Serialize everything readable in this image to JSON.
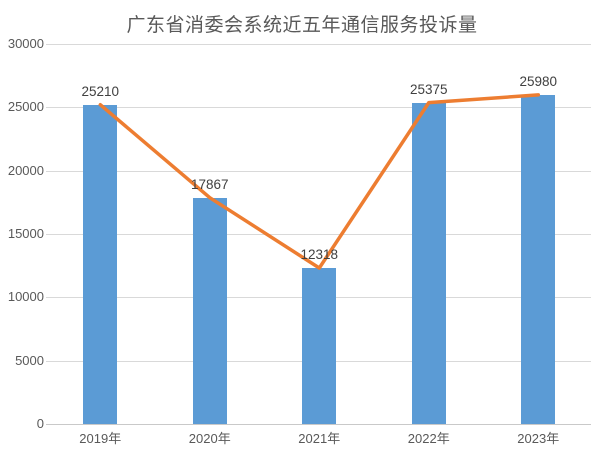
{
  "chart_data": {
    "type": "bar",
    "line_overlay": true,
    "title": "广东省消委会系统近五年通信服务投诉量",
    "categories": [
      "2019年",
      "2020年",
      "2021年",
      "2022年",
      "2023年"
    ],
    "values": [
      25210,
      17867,
      12318,
      25375,
      25980
    ],
    "data_labels": [
      "25210",
      "17867",
      "12318",
      "25375",
      "25980"
    ],
    "ylim": [
      0,
      30000
    ],
    "ytick_interval": 5000,
    "yticks": [
      0,
      5000,
      10000,
      15000,
      20000,
      25000,
      30000
    ],
    "grid": true,
    "legend": "none",
    "xlabel": "",
    "ylabel": "",
    "bar_color": "#5B9BD5",
    "line_color": "#ED7D31",
    "gridline_color": "#D9D9D9",
    "title_color": "#595959",
    "tick_label_color": "#595959",
    "data_label_color": "#404040"
  }
}
